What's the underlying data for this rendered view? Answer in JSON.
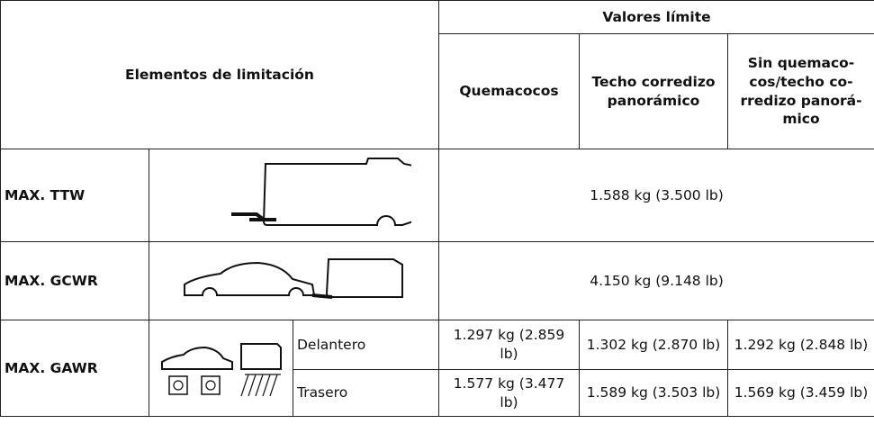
{
  "header": {
    "limiting_elements": "Elementos de limitación",
    "limit_values": "Valores límite",
    "columns": [
      [
        "Quemacocos"
      ],
      [
        "Techo corredizo",
        "panorámico"
      ],
      [
        "Sin quemaco-",
        "cos/techo co-",
        "rredizo panorá-",
        "mico"
      ]
    ]
  },
  "rows": [
    {
      "label": "MAX. TTW",
      "value": "1.588 kg (3.500 lb)"
    },
    {
      "label": "MAX. GCWR",
      "value": "4.150 kg (9.148 lb)"
    },
    {
      "label": "MAX. GAWR",
      "axles": [
        {
          "name": "Delantero",
          "values": [
            "1.297 kg (2.859 lb)",
            "1.302 kg (2.870 lb)",
            "1.292 kg (2.848 lb)"
          ]
        },
        {
          "name": "Trasero",
          "values": [
            "1.577 kg (3.477 lb)",
            "1.589 kg (3.503 lb)",
            "1.569 kg (3.459 lb)"
          ]
        }
      ]
    }
  ]
}
